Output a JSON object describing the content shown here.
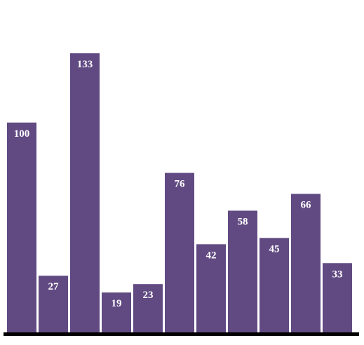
{
  "chart_data": {
    "type": "bar",
    "categories": [
      "",
      "",
      "",
      "",
      "",
      "",
      "",
      "",
      "",
      "",
      ""
    ],
    "values": [
      100,
      27,
      133,
      19,
      23,
      76,
      42,
      58,
      45,
      66,
      33
    ],
    "title": "",
    "xlabel": "",
    "ylabel": "",
    "ylim": [
      0,
      133
    ],
    "grid": false,
    "legend": "none",
    "data_labels": "inside-top"
  },
  "colors": {
    "bar": "#614a82",
    "label": "#ffffff",
    "axis": "#000000",
    "background": "#ffffff"
  }
}
